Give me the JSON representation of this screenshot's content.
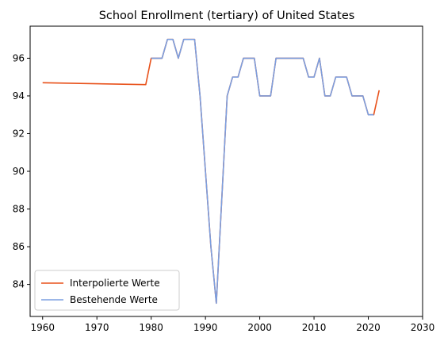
{
  "chart_data": {
    "type": "line",
    "title": "School Enrollment (tertiary) of United States",
    "xlabel": "",
    "ylabel": "",
    "xlim": [
      1957.7,
      2030
    ],
    "ylim": [
      82.3,
      97.7
    ],
    "x_ticks": [
      1960,
      1970,
      1980,
      1990,
      2000,
      2010,
      2020,
      2030
    ],
    "y_ticks": [
      84,
      86,
      88,
      90,
      92,
      94,
      96
    ],
    "grid": false,
    "legend_position": "lower-left",
    "series": [
      {
        "name": "Interpolierte Werte",
        "color": "#e8511a",
        "x": [
          1960,
          1979,
          1980,
          1981,
          1982,
          1983,
          1984,
          1985,
          1986,
          1987,
          1988,
          1989,
          1990,
          1991,
          1992,
          1993,
          1994,
          1995,
          1996,
          1997,
          1998,
          1999,
          2000,
          2001,
          2002,
          2003,
          2004,
          2005,
          2006,
          2007,
          2008,
          2009,
          2010,
          2011,
          2012,
          2013,
          2014,
          2015,
          2016,
          2017,
          2018,
          2019,
          2020,
          2021,
          2022
        ],
        "y": [
          94.7,
          94.6,
          96,
          96,
          96,
          97,
          97,
          96,
          97,
          97,
          97,
          94,
          90,
          86,
          83,
          88.5,
          94,
          95,
          95,
          96,
          96,
          96,
          94,
          94,
          94,
          96,
          96,
          96,
          96,
          96,
          96,
          95,
          95,
          96,
          94,
          94,
          95,
          95,
          95,
          94,
          94,
          94,
          93,
          93,
          94.3
        ]
      },
      {
        "name": "Bestehende Werte",
        "color": "#7b9fe0",
        "x": [
          1980,
          1981,
          1982,
          1983,
          1984,
          1985,
          1986,
          1987,
          1988,
          1989,
          1990,
          1991,
          1992,
          1993,
          1994,
          1995,
          1996,
          1997,
          1998,
          1999,
          2000,
          2001,
          2002,
          2003,
          2004,
          2005,
          2006,
          2007,
          2008,
          2009,
          2010,
          2011,
          2012,
          2013,
          2014,
          2015,
          2016,
          2017,
          2018,
          2019,
          2020,
          2021
        ],
        "y": [
          96,
          96,
          96,
          97,
          97,
          96,
          97,
          97,
          97,
          94,
          90,
          86,
          83,
          88.5,
          94,
          95,
          95,
          96,
          96,
          96,
          94,
          94,
          94,
          96,
          96,
          96,
          96,
          96,
          96,
          95,
          95,
          96,
          94,
          94,
          95,
          95,
          95,
          94,
          94,
          94,
          93,
          93
        ]
      }
    ]
  }
}
